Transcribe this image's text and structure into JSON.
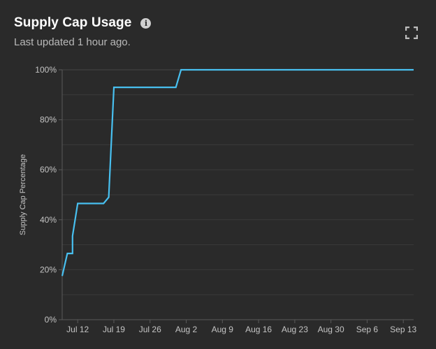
{
  "header": {
    "title": "Supply Cap Usage",
    "subtitle": "Last updated 1 hour ago.",
    "info_icon": "info-icon",
    "expand_icon": "expand-icon"
  },
  "colors": {
    "background": "#2a2a2a",
    "line": "#48c0f0",
    "grid": "#3a3a3a",
    "axis_text": "#c4c4c4"
  },
  "chart_data": {
    "type": "line",
    "title": "Supply Cap Usage",
    "xlabel": "",
    "ylabel": "Supply Cap Percentage",
    "ylim": [
      0,
      100
    ],
    "xlim": [
      "2023-07-09",
      "2023-09-15"
    ],
    "y_ticks": [
      0,
      20,
      40,
      60,
      80,
      100
    ],
    "y_tick_labels": [
      "0%",
      "20%",
      "40%",
      "60%",
      "80%",
      "100%"
    ],
    "x_ticks": [
      "2023-07-12",
      "2023-07-19",
      "2023-07-26",
      "2023-08-02",
      "2023-08-09",
      "2023-08-16",
      "2023-08-23",
      "2023-08-30",
      "2023-09-06",
      "2023-09-13"
    ],
    "x_tick_labels": [
      "Jul 12",
      "Jul 19",
      "Jul 26",
      "Aug 2",
      "Aug 9",
      "Aug 16",
      "Aug 23",
      "Aug 30",
      "Sep 6",
      "Sep 13"
    ],
    "grid": true,
    "series": [
      {
        "x": [
          "2023-07-09",
          "2023-07-10",
          "2023-07-11",
          "2023-07-11",
          "2023-07-12",
          "2023-07-17",
          "2023-07-18",
          "2023-07-19",
          "2023-07-31",
          "2023-08-01",
          "2023-09-15"
        ],
        "y": [
          17.5,
          26.5,
          26.5,
          33.5,
          46.5,
          46.5,
          49,
          93,
          93,
          100,
          100
        ]
      }
    ]
  }
}
